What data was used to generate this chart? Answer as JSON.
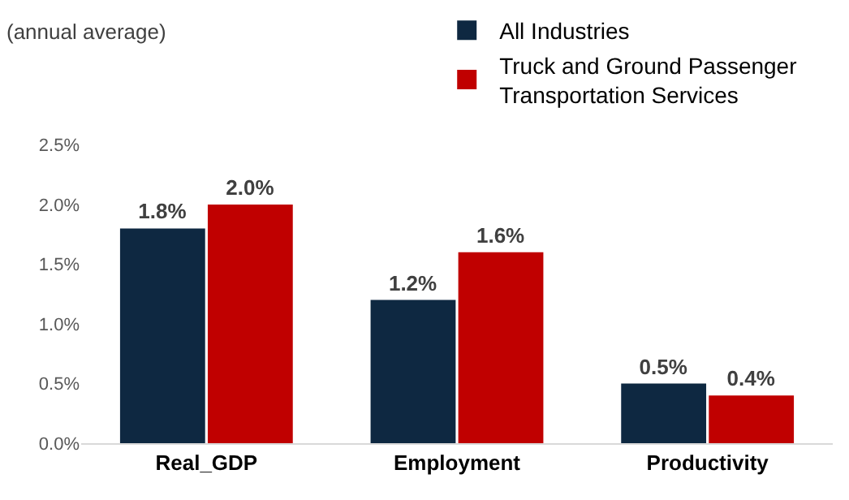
{
  "chart_data": {
    "type": "bar",
    "ylabel": "(annual average)",
    "categories": [
      "Real_GDP",
      "Employment",
      "Productivity"
    ],
    "series": [
      {
        "name": "All Industries",
        "color": "#0e2841",
        "values": [
          1.8,
          1.2,
          0.5
        ],
        "value_labels": [
          "1.8%",
          "1.2%",
          "0.5%"
        ]
      },
      {
        "name": "Truck and Ground Passenger Transportation Services",
        "color": "#c00000",
        "values": [
          2.0,
          1.6,
          0.4
        ],
        "value_labels": [
          "2.0%",
          "1.6%",
          "0.4%"
        ]
      }
    ],
    "ylim": [
      0,
      2.5
    ],
    "yticks": [
      {
        "value": 0,
        "label": "0.0%"
      },
      {
        "value": 0.5,
        "label": "0.5%"
      },
      {
        "value": 1.0,
        "label": "1.0%"
      },
      {
        "value": 1.5,
        "label": "1.5%"
      },
      {
        "value": 2.0,
        "label": "2.0%"
      },
      {
        "value": 2.5,
        "label": "2.5%"
      }
    ],
    "legend": "top right"
  }
}
